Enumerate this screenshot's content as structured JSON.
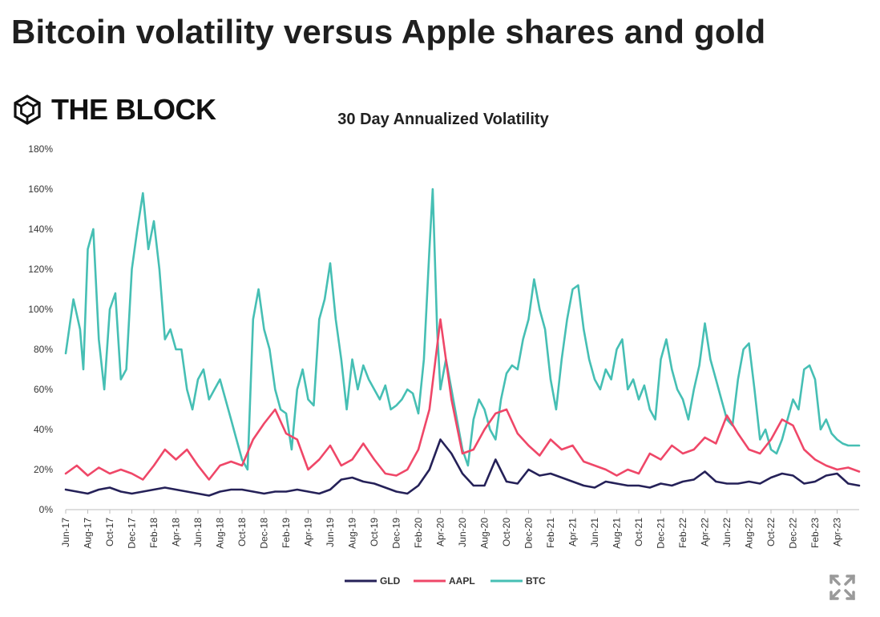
{
  "headline": "Bitcoin volatility versus Apple shares and gold",
  "logo": {
    "text": "THE BLOCK",
    "icon": "the-block-cube-icon"
  },
  "expand": {
    "icon": "expand-arrows-icon"
  },
  "colors": {
    "GLD": "#252158",
    "AAPL": "#ef4768",
    "BTC": "#46bfb4",
    "axis": "#bdbdbd",
    "text": "#222222"
  },
  "chart_data": {
    "type": "line",
    "title": "30 Day Annualized Volatility",
    "xlabel": "",
    "ylabel": "",
    "ylim": [
      0,
      180
    ],
    "yticks": [
      "0%",
      "20%",
      "40%",
      "60%",
      "80%",
      "100%",
      "120%",
      "140%",
      "160%",
      "180%"
    ],
    "xlim": [
      0,
      72
    ],
    "x_ticks": [
      {
        "label": "Jun-17",
        "x": 0
      },
      {
        "label": "Aug-17",
        "x": 2
      },
      {
        "label": "Oct-17",
        "x": 4
      },
      {
        "label": "Dec-17",
        "x": 6
      },
      {
        "label": "Feb-18",
        "x": 8
      },
      {
        "label": "Apr-18",
        "x": 10
      },
      {
        "label": "Jun-18",
        "x": 12
      },
      {
        "label": "Aug-18",
        "x": 14
      },
      {
        "label": "Oct-18",
        "x": 16
      },
      {
        "label": "Dec-18",
        "x": 18
      },
      {
        "label": "Feb-19",
        "x": 20
      },
      {
        "label": "Apr-19",
        "x": 22
      },
      {
        "label": "Jun-19",
        "x": 24
      },
      {
        "label": "Aug-19",
        "x": 26
      },
      {
        "label": "Oct-19",
        "x": 28
      },
      {
        "label": "Dec-19",
        "x": 30
      },
      {
        "label": "Feb-20",
        "x": 32
      },
      {
        "label": "Apr-20",
        "x": 34
      },
      {
        "label": "Jun-20",
        "x": 36
      },
      {
        "label": "Aug-20",
        "x": 38
      },
      {
        "label": "Oct-20",
        "x": 40
      },
      {
        "label": "Dec-20",
        "x": 42
      },
      {
        "label": "Feb-21",
        "x": 44
      },
      {
        "label": "Apr-21",
        "x": 46
      },
      {
        "label": "Jun-21",
        "x": 48
      },
      {
        "label": "Aug-21",
        "x": 50
      },
      {
        "label": "Oct-21",
        "x": 52
      },
      {
        "label": "Dec-21",
        "x": 54
      },
      {
        "label": "Feb-22",
        "x": 56
      },
      {
        "label": "Apr-22",
        "x": 58
      },
      {
        "label": "Jun-22",
        "x": 60
      },
      {
        "label": "Aug-22",
        "x": 62
      },
      {
        "label": "Oct-22",
        "x": 64
      },
      {
        "label": "Dec-22",
        "x": 66
      },
      {
        "label": "Feb-23",
        "x": 68
      },
      {
        "label": "Apr-23",
        "x": 70
      }
    ],
    "legend_position": "bottom-center",
    "series": [
      {
        "name": "GLD",
        "color": "#252158",
        "points": [
          [
            0,
            10
          ],
          [
            1,
            9
          ],
          [
            2,
            8
          ],
          [
            3,
            10
          ],
          [
            4,
            11
          ],
          [
            5,
            9
          ],
          [
            6,
            8
          ],
          [
            7,
            9
          ],
          [
            8,
            10
          ],
          [
            9,
            11
          ],
          [
            10,
            10
          ],
          [
            11,
            9
          ],
          [
            12,
            8
          ],
          [
            13,
            7
          ],
          [
            14,
            9
          ],
          [
            15,
            10
          ],
          [
            16,
            10
          ],
          [
            17,
            9
          ],
          [
            18,
            8
          ],
          [
            19,
            9
          ],
          [
            20,
            9
          ],
          [
            21,
            10
          ],
          [
            22,
            9
          ],
          [
            23,
            8
          ],
          [
            24,
            10
          ],
          [
            25,
            15
          ],
          [
            26,
            16
          ],
          [
            27,
            14
          ],
          [
            28,
            13
          ],
          [
            29,
            11
          ],
          [
            30,
            9
          ],
          [
            31,
            8
          ],
          [
            32,
            12
          ],
          [
            33,
            20
          ],
          [
            34,
            35
          ],
          [
            35,
            28
          ],
          [
            36,
            18
          ],
          [
            37,
            12
          ],
          [
            38,
            12
          ],
          [
            39,
            25
          ],
          [
            40,
            14
          ],
          [
            41,
            13
          ],
          [
            42,
            20
          ],
          [
            43,
            17
          ],
          [
            44,
            18
          ],
          [
            45,
            16
          ],
          [
            46,
            14
          ],
          [
            47,
            12
          ],
          [
            48,
            11
          ],
          [
            49,
            14
          ],
          [
            50,
            13
          ],
          [
            51,
            12
          ],
          [
            52,
            12
          ],
          [
            53,
            11
          ],
          [
            54,
            13
          ],
          [
            55,
            12
          ],
          [
            56,
            14
          ],
          [
            57,
            15
          ],
          [
            58,
            19
          ],
          [
            59,
            14
          ],
          [
            60,
            13
          ],
          [
            61,
            13
          ],
          [
            62,
            14
          ],
          [
            63,
            13
          ],
          [
            64,
            16
          ],
          [
            65,
            18
          ],
          [
            66,
            17
          ],
          [
            67,
            13
          ],
          [
            68,
            14
          ],
          [
            69,
            17
          ],
          [
            70,
            18
          ],
          [
            71,
            13
          ],
          [
            72,
            12
          ]
        ]
      },
      {
        "name": "AAPL",
        "color": "#ef4768",
        "points": [
          [
            0,
            18
          ],
          [
            1,
            22
          ],
          [
            2,
            17
          ],
          [
            3,
            21
          ],
          [
            4,
            18
          ],
          [
            5,
            20
          ],
          [
            6,
            18
          ],
          [
            7,
            15
          ],
          [
            8,
            22
          ],
          [
            9,
            30
          ],
          [
            10,
            25
          ],
          [
            11,
            30
          ],
          [
            12,
            22
          ],
          [
            13,
            15
          ],
          [
            14,
            22
          ],
          [
            15,
            24
          ],
          [
            16,
            22
          ],
          [
            17,
            35
          ],
          [
            18,
            43
          ],
          [
            19,
            50
          ],
          [
            20,
            38
          ],
          [
            21,
            35
          ],
          [
            22,
            20
          ],
          [
            23,
            25
          ],
          [
            24,
            32
          ],
          [
            25,
            22
          ],
          [
            26,
            25
          ],
          [
            27,
            33
          ],
          [
            28,
            25
          ],
          [
            29,
            18
          ],
          [
            30,
            17
          ],
          [
            31,
            20
          ],
          [
            32,
            30
          ],
          [
            33,
            50
          ],
          [
            34,
            95
          ],
          [
            35,
            55
          ],
          [
            36,
            28
          ],
          [
            37,
            30
          ],
          [
            38,
            40
          ],
          [
            39,
            48
          ],
          [
            40,
            50
          ],
          [
            41,
            38
          ],
          [
            42,
            32
          ],
          [
            43,
            27
          ],
          [
            44,
            35
          ],
          [
            45,
            30
          ],
          [
            46,
            32
          ],
          [
            47,
            24
          ],
          [
            48,
            22
          ],
          [
            49,
            20
          ],
          [
            50,
            17
          ],
          [
            51,
            20
          ],
          [
            52,
            18
          ],
          [
            53,
            28
          ],
          [
            54,
            25
          ],
          [
            55,
            32
          ],
          [
            56,
            28
          ],
          [
            57,
            30
          ],
          [
            58,
            36
          ],
          [
            59,
            33
          ],
          [
            60,
            47
          ],
          [
            61,
            38
          ],
          [
            62,
            30
          ],
          [
            63,
            28
          ],
          [
            64,
            35
          ],
          [
            65,
            45
          ],
          [
            66,
            42
          ],
          [
            67,
            30
          ],
          [
            68,
            25
          ],
          [
            69,
            22
          ],
          [
            70,
            20
          ],
          [
            71,
            21
          ],
          [
            72,
            19
          ]
        ]
      },
      {
        "name": "BTC",
        "color": "#46bfb4",
        "points": [
          [
            0,
            78
          ],
          [
            0.7,
            105
          ],
          [
            1.3,
            90
          ],
          [
            1.6,
            70
          ],
          [
            2,
            130
          ],
          [
            2.5,
            140
          ],
          [
            3,
            85
          ],
          [
            3.5,
            60
          ],
          [
            4,
            100
          ],
          [
            4.5,
            108
          ],
          [
            5,
            65
          ],
          [
            5.5,
            70
          ],
          [
            6,
            120
          ],
          [
            6.5,
            140
          ],
          [
            7,
            158
          ],
          [
            7.5,
            130
          ],
          [
            8,
            144
          ],
          [
            8.5,
            120
          ],
          [
            9,
            85
          ],
          [
            9.5,
            90
          ],
          [
            10,
            80
          ],
          [
            10.5,
            80
          ],
          [
            11,
            60
          ],
          [
            11.5,
            50
          ],
          [
            12,
            65
          ],
          [
            12.5,
            70
          ],
          [
            13,
            55
          ],
          [
            13.5,
            60
          ],
          [
            14,
            65
          ],
          [
            14.5,
            55
          ],
          [
            15,
            45
          ],
          [
            15.5,
            35
          ],
          [
            16,
            25
          ],
          [
            16.5,
            20
          ],
          [
            17,
            95
          ],
          [
            17.5,
            110
          ],
          [
            18,
            90
          ],
          [
            18.5,
            80
          ],
          [
            19,
            60
          ],
          [
            19.5,
            50
          ],
          [
            20,
            48
          ],
          [
            20.5,
            30
          ],
          [
            21,
            60
          ],
          [
            21.5,
            70
          ],
          [
            22,
            55
          ],
          [
            22.5,
            52
          ],
          [
            23,
            95
          ],
          [
            23.5,
            105
          ],
          [
            24,
            123
          ],
          [
            24.5,
            95
          ],
          [
            25,
            75
          ],
          [
            25.5,
            50
          ],
          [
            26,
            75
          ],
          [
            26.5,
            60
          ],
          [
            27,
            72
          ],
          [
            27.5,
            65
          ],
          [
            28,
            60
          ],
          [
            28.5,
            55
          ],
          [
            29,
            62
          ],
          [
            29.5,
            50
          ],
          [
            30,
            52
          ],
          [
            30.5,
            55
          ],
          [
            31,
            60
          ],
          [
            31.5,
            58
          ],
          [
            32,
            48
          ],
          [
            32.5,
            75
          ],
          [
            33,
            130
          ],
          [
            33.3,
            160
          ],
          [
            33.7,
            90
          ],
          [
            34,
            60
          ],
          [
            34.5,
            75
          ],
          [
            35,
            60
          ],
          [
            35.5,
            45
          ],
          [
            36,
            30
          ],
          [
            36.5,
            22
          ],
          [
            37,
            45
          ],
          [
            37.5,
            55
          ],
          [
            38,
            50
          ],
          [
            38.5,
            40
          ],
          [
            39,
            35
          ],
          [
            39.5,
            55
          ],
          [
            40,
            68
          ],
          [
            40.5,
            72
          ],
          [
            41,
            70
          ],
          [
            41.5,
            85
          ],
          [
            42,
            95
          ],
          [
            42.5,
            115
          ],
          [
            43,
            100
          ],
          [
            43.5,
            90
          ],
          [
            44,
            65
          ],
          [
            44.5,
            50
          ],
          [
            45,
            75
          ],
          [
            45.5,
            95
          ],
          [
            46,
            110
          ],
          [
            46.5,
            112
          ],
          [
            47,
            90
          ],
          [
            47.5,
            75
          ],
          [
            48,
            65
          ],
          [
            48.5,
            60
          ],
          [
            49,
            70
          ],
          [
            49.5,
            65
          ],
          [
            50,
            80
          ],
          [
            50.5,
            85
          ],
          [
            51,
            60
          ],
          [
            51.5,
            65
          ],
          [
            52,
            55
          ],
          [
            52.5,
            62
          ],
          [
            53,
            50
          ],
          [
            53.5,
            45
          ],
          [
            54,
            75
          ],
          [
            54.5,
            85
          ],
          [
            55,
            70
          ],
          [
            55.5,
            60
          ],
          [
            56,
            55
          ],
          [
            56.5,
            45
          ],
          [
            57,
            60
          ],
          [
            57.5,
            72
          ],
          [
            58,
            93
          ],
          [
            58.5,
            75
          ],
          [
            59,
            65
          ],
          [
            59.5,
            55
          ],
          [
            60,
            45
          ],
          [
            60.5,
            42
          ],
          [
            61,
            65
          ],
          [
            61.5,
            80
          ],
          [
            62,
            83
          ],
          [
            62.5,
            60
          ],
          [
            63,
            35
          ],
          [
            63.5,
            40
          ],
          [
            64,
            30
          ],
          [
            64.5,
            28
          ],
          [
            65,
            35
          ],
          [
            65.5,
            45
          ],
          [
            66,
            55
          ],
          [
            66.5,
            50
          ],
          [
            67,
            70
          ],
          [
            67.5,
            72
          ],
          [
            68,
            65
          ],
          [
            68.5,
            40
          ],
          [
            69,
            45
          ],
          [
            69.5,
            38
          ],
          [
            70,
            35
          ],
          [
            70.5,
            33
          ],
          [
            71,
            32
          ],
          [
            72,
            32
          ]
        ]
      }
    ]
  }
}
